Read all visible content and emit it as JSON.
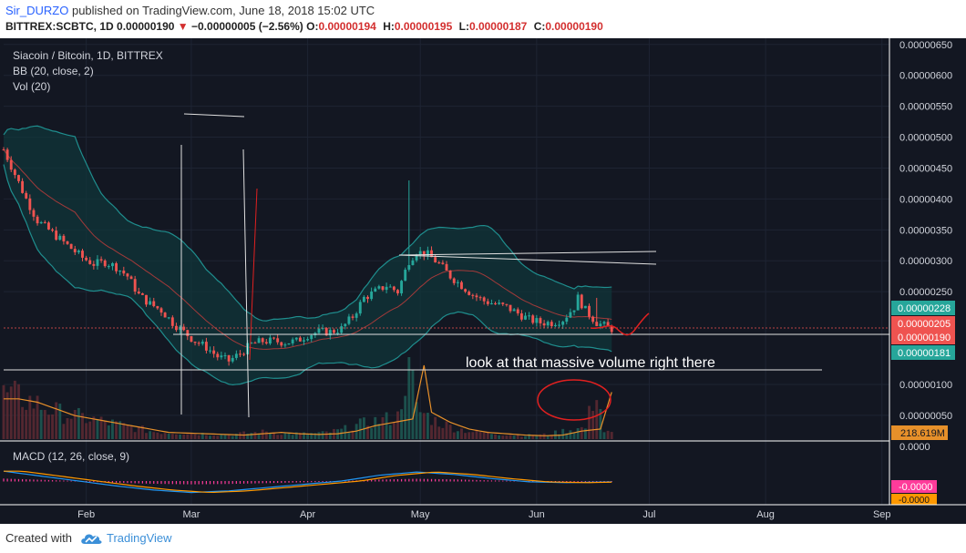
{
  "header": {
    "author": "Sir_DURZO",
    "published_text": "published on TradingView.com, June 18, 2018 15:02 UTC",
    "symbol": "BITTREX:SCBTC, 1D",
    "price": "0.00000190",
    "change_arrow": "▼",
    "change": "−0.00000005 (−2.56%)",
    "open_label": "O:",
    "open": "0.00000194",
    "high_label": "H:",
    "high": "0.00000195",
    "low_label": "L:",
    "low": "0.00000187",
    "close_label": "C:",
    "close": "0.00000190"
  },
  "legend": {
    "title": "Siacoin / Bitcoin, 1D, BITTREX",
    "bb": "BB (20, close, 2)",
    "vol": "Vol (20)",
    "macd": "MACD (12, 26, close, 9)"
  },
  "annotation": {
    "text": "look at that massive volume right there"
  },
  "footer": {
    "created_with": "Created with",
    "brand": "TradingView",
    "logo_icon": "tradingview-cloud-icon"
  },
  "colors": {
    "background": "#131722",
    "grid": "#1e2433",
    "up": "#26a69a",
    "down": "#ef5350",
    "bb_line": "#1f8e8e",
    "bb_mid": "#a33a3a",
    "bb_fill": "#10383a",
    "vol_ma": "#e7902a",
    "macd_line": "#2196f3",
    "signal_line": "#ff9800",
    "hist": "#ff3b9a",
    "annotation": "#ffffff",
    "red_marker": "#e02020"
  },
  "chart_data": {
    "type": "candlestick",
    "title": "Siacoin / Bitcoin, 1D, BITTREX",
    "xlabels": [
      "Feb",
      "Mar",
      "Apr",
      "May",
      "Jun",
      "Jul",
      "Aug",
      "Sep"
    ],
    "price_axis": {
      "ticks": [
        "0.00000650",
        "0.00000600",
        "0.00000550",
        "0.00000500",
        "0.00000450",
        "0.00000400",
        "0.00000350",
        "0.00000300",
        "0.00000250",
        "0.00000100",
        "0.00000050"
      ],
      "ylim": [
        1e-07,
        6.6e-06
      ],
      "badges": [
        {
          "value": "0.00000228",
          "color": "#26a69a"
        },
        {
          "value": "0.00000205",
          "color": "#ef5350"
        },
        {
          "value": "0.00000190",
          "color": "#ef5350"
        },
        {
          "value": "0.00000181",
          "color": "#26a69a"
        }
      ],
      "volume_badge": "218.619M",
      "macd_zero_label": "0.0000",
      "macd_badges": [
        "-0.0000",
        "-0.0000"
      ]
    },
    "close_waypoints": [
      [
        0,
        4.8
      ],
      [
        3,
        4.4
      ],
      [
        6,
        4.0
      ],
      [
        9,
        3.65
      ],
      [
        12,
        3.5
      ],
      [
        15,
        3.35
      ],
      [
        18,
        3.2
      ],
      [
        21,
        3.05
      ],
      [
        24,
        2.95
      ],
      [
        27,
        2.98
      ],
      [
        30,
        2.9
      ],
      [
        33,
        2.75
      ],
      [
        36,
        2.45
      ],
      [
        39,
        2.3
      ],
      [
        42,
        2.2
      ],
      [
        45,
        2.0
      ],
      [
        48,
        1.85
      ],
      [
        51,
        1.7
      ],
      [
        54,
        1.6
      ],
      [
        57,
        1.45
      ],
      [
        60,
        1.38
      ],
      [
        63,
        1.5
      ],
      [
        66,
        1.65
      ],
      [
        69,
        1.7
      ],
      [
        72,
        1.7
      ],
      [
        75,
        1.68
      ],
      [
        78,
        1.7
      ],
      [
        81,
        1.8
      ],
      [
        84,
        1.85
      ],
      [
        87,
        1.85
      ],
      [
        90,
        1.9
      ],
      [
        93,
        2.1
      ],
      [
        96,
        2.4
      ],
      [
        99,
        2.5
      ],
      [
        102,
        2.6
      ],
      [
        105,
        2.5
      ],
      [
        108,
        3.0
      ],
      [
        110,
        3.15
      ],
      [
        113,
        3.1
      ],
      [
        116,
        2.95
      ],
      [
        119,
        2.75
      ],
      [
        122,
        2.6
      ],
      [
        125,
        2.45
      ],
      [
        128,
        2.35
      ],
      [
        131,
        2.3
      ],
      [
        134,
        2.25
      ],
      [
        137,
        2.15
      ],
      [
        140,
        2.05
      ],
      [
        143,
        2.0
      ],
      [
        146,
        2.0
      ],
      [
        149,
        2.05
      ],
      [
        152,
        2.25
      ],
      [
        153,
        2.4
      ],
      [
        155,
        2.2
      ],
      [
        158,
        2.0
      ],
      [
        161,
        1.92
      ],
      [
        162,
        1.9
      ]
    ],
    "spikes": [
      [
        108,
        4.3
      ],
      [
        26,
        2.7
      ],
      [
        40,
        2.4
      ],
      [
        158,
        2.4
      ]
    ],
    "volume_waypoints": [
      [
        0,
        60
      ],
      [
        5,
        55
      ],
      [
        10,
        45
      ],
      [
        15,
        35
      ],
      [
        20,
        30
      ],
      [
        25,
        25
      ],
      [
        30,
        20
      ],
      [
        35,
        15
      ],
      [
        40,
        10
      ],
      [
        45,
        9
      ],
      [
        50,
        8
      ],
      [
        55,
        7
      ],
      [
        60,
        6
      ],
      [
        65,
        8
      ],
      [
        70,
        10
      ],
      [
        75,
        8
      ],
      [
        80,
        7
      ],
      [
        85,
        8
      ],
      [
        90,
        12
      ],
      [
        95,
        20
      ],
      [
        100,
        25
      ],
      [
        105,
        30
      ],
      [
        108,
        110
      ],
      [
        110,
        40
      ],
      [
        115,
        25
      ],
      [
        120,
        15
      ],
      [
        125,
        10
      ],
      [
        130,
        8
      ],
      [
        135,
        6
      ],
      [
        140,
        5
      ],
      [
        145,
        6
      ],
      [
        150,
        12
      ],
      [
        155,
        15
      ],
      [
        158,
        70
      ],
      [
        160,
        10
      ],
      [
        162,
        8
      ]
    ],
    "volume_max": 110,
    "macd_waypoints": [
      [
        0,
        0.6
      ],
      [
        10,
        0.3
      ],
      [
        20,
        0.0
      ],
      [
        30,
        -0.3
      ],
      [
        40,
        -0.55
      ],
      [
        50,
        -0.7
      ],
      [
        60,
        -0.6
      ],
      [
        70,
        -0.4
      ],
      [
        80,
        -0.2
      ],
      [
        90,
        0.0
      ],
      [
        100,
        0.35
      ],
      [
        110,
        0.55
      ],
      [
        120,
        0.4
      ],
      [
        130,
        0.15
      ],
      [
        140,
        -0.05
      ],
      [
        150,
        -0.1
      ],
      [
        162,
        -0.05
      ]
    ],
    "days_per_month_index": {
      "Feb": 22,
      "Mar": 50,
      "Apr": 81,
      "May": 111,
      "Jun": 142,
      "Jul": 172,
      "Aug": 203,
      "Sep": 234
    },
    "total_days": 236,
    "last_day": 162
  }
}
